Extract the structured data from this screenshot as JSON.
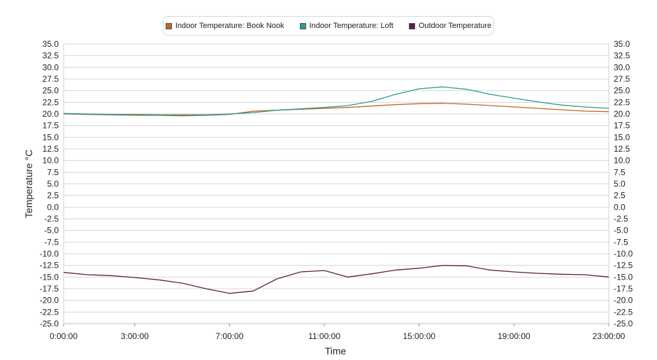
{
  "chart_data": {
    "type": "line",
    "title": "",
    "xlabel": "Time",
    "ylabel": "Temperature °C",
    "ylim": [
      -25,
      35
    ],
    "y_tick_step": 2.5,
    "grid": true,
    "legend_position": "top-center",
    "x_hours": [
      0,
      1,
      2,
      3,
      4,
      5,
      6,
      7,
      8,
      9,
      10,
      11,
      12,
      13,
      14,
      15,
      16,
      17,
      18,
      19,
      20,
      21,
      22,
      23
    ],
    "x_tick_hours": [
      0,
      3,
      7,
      11,
      15,
      19,
      23
    ],
    "x_tick_labels": [
      "0:00:00",
      "3:00:00",
      "7:00:00",
      "11:00:00",
      "15:00:00",
      "19:00:00",
      "23:00:00"
    ],
    "series": [
      {
        "name": "Indoor Temperature: Book Nook",
        "color": "#c8641e",
        "values": [
          20.0,
          19.9,
          19.8,
          19.7,
          19.7,
          19.6,
          19.7,
          19.9,
          20.6,
          20.8,
          21.0,
          21.2,
          21.4,
          21.7,
          22.0,
          22.2,
          22.3,
          22.1,
          21.8,
          21.5,
          21.2,
          20.9,
          20.6,
          20.5
        ]
      },
      {
        "name": "Indoor Temperature: Loft",
        "color": "#2a9d96",
        "values": [
          20.1,
          20.0,
          19.9,
          19.9,
          19.8,
          19.8,
          19.8,
          20.0,
          20.3,
          20.8,
          21.1,
          21.4,
          21.8,
          22.7,
          24.2,
          25.4,
          25.8,
          25.3,
          24.2,
          23.4,
          22.6,
          21.9,
          21.5,
          21.2
        ]
      },
      {
        "name": "Outdoor Temperature",
        "color": "#5c1f4e",
        "values": [
          -14.0,
          -14.5,
          -14.7,
          -15.1,
          -15.6,
          -16.3,
          -17.5,
          -18.5,
          -18.0,
          -15.4,
          -13.9,
          -13.6,
          -15.0,
          -14.3,
          -13.5,
          -13.1,
          -12.5,
          -12.6,
          -13.5,
          -13.9,
          -14.2,
          -14.4,
          -14.5,
          -15.0
        ]
      }
    ]
  }
}
